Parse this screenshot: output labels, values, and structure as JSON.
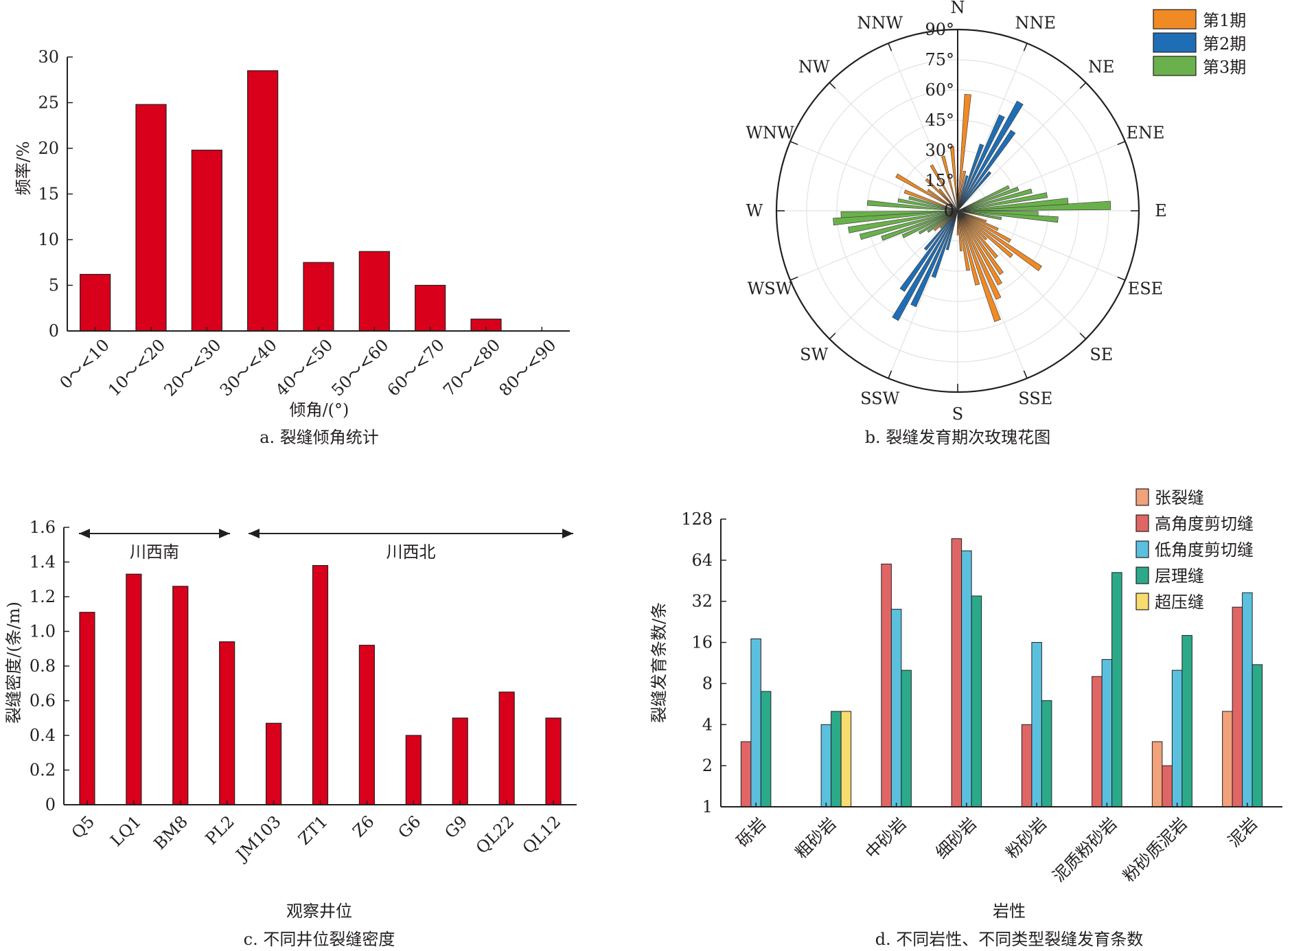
{
  "chart_data": [
    {
      "id": "a",
      "type": "bar",
      "caption": "a. 裂缝倾角统计",
      "xlabel": "倾角/(°)",
      "ylabel": "频率/%",
      "ylim": [
        0,
        30
      ],
      "yticks": [
        "0",
        "5",
        "10",
        "15",
        "20",
        "25",
        "30"
      ],
      "categories": [
        "0～<10",
        "10～<20",
        "20～<30",
        "30～<40",
        "40～<50",
        "50～<60",
        "60～<70",
        "70～<80",
        "80～<90"
      ],
      "values": [
        6.2,
        24.8,
        19.8,
        28.5,
        7.5,
        8.7,
        5.0,
        1.3,
        0
      ],
      "color": "#d9001b"
    },
    {
      "id": "b",
      "type": "rose",
      "caption": "b. 裂缝发育期次玫瑰花图",
      "directions": [
        "N",
        "NNE",
        "NE",
        "ENE",
        "E",
        "ESE",
        "SE",
        "SSE",
        "S",
        "SSW",
        "SW",
        "WSW",
        "W",
        "WNW",
        "NW",
        "NNW"
      ],
      "radial_labels": [
        "0",
        "15°",
        "30°",
        "45°",
        "60°",
        "75°",
        "90°"
      ],
      "legend": [
        "第1期",
        "第2期",
        "第3期"
      ],
      "colors": [
        "#f08a24",
        "#1f6eb5",
        "#6ab04c"
      ],
      "series": [
        {
          "name": "第1期",
          "petals": [
            [
              5,
              58
            ],
            [
              355,
              32
            ],
            [
              345,
              28
            ],
            [
              330,
              26
            ],
            [
              315,
              22
            ],
            [
              300,
              35
            ],
            [
              290,
              28
            ],
            [
              305,
              18
            ],
            [
              320,
              14
            ],
            [
              10,
              20
            ],
            [
              160,
              58
            ],
            [
              155,
              48
            ],
            [
              150,
              42
            ],
            [
              145,
              38
            ],
            [
              140,
              30
            ],
            [
              125,
              50
            ],
            [
              130,
              35
            ],
            [
              165,
              38
            ],
            [
              170,
              30
            ],
            [
              175,
              20
            ],
            [
              180,
              12
            ],
            [
              135,
              20
            ],
            [
              120,
              30
            ],
            [
              115,
              22
            ],
            [
              110,
              15
            ],
            [
              100,
              18
            ],
            [
              250,
              22
            ],
            [
              240,
              18
            ],
            [
              230,
              15
            ],
            [
              200,
              12
            ]
          ]
        },
        {
          "name": "第2期",
          "petals": [
            [
              30,
              62
            ],
            [
              25,
              52
            ],
            [
              35,
              48
            ],
            [
              20,
              35
            ],
            [
              40,
              25
            ],
            [
              210,
              62
            ],
            [
              205,
              52
            ],
            [
              215,
              48
            ],
            [
              200,
              35
            ],
            [
              220,
              25
            ],
            [
              195,
              20
            ],
            [
              15,
              18
            ]
          ]
        },
        {
          "name": "第3期",
          "petals": [
            [
              88,
              76
            ],
            [
              85,
              55
            ],
            [
              80,
              45
            ],
            [
              75,
              38
            ],
            [
              70,
              32
            ],
            [
              65,
              28
            ],
            [
              95,
              50
            ],
            [
              92,
              40
            ],
            [
              100,
              22
            ],
            [
              268,
              58
            ],
            [
              265,
              62
            ],
            [
              260,
              55
            ],
            [
              255,
              50
            ],
            [
              250,
              40
            ],
            [
              245,
              30
            ],
            [
              275,
              45
            ],
            [
              280,
              30
            ],
            [
              285,
              25
            ],
            [
              240,
              22
            ],
            [
              235,
              18
            ],
            [
              225,
              12
            ]
          ]
        }
      ]
    },
    {
      "id": "c",
      "type": "bar",
      "caption": "c. 不同井位裂缝密度",
      "xlabel": "观察井位",
      "ylabel": "裂缝密度/(条/m)",
      "ylim": [
        0,
        1.6
      ],
      "yticks": [
        "0",
        "0.2",
        "0.4",
        "0.6",
        "0.8",
        "1.0",
        "1.2",
        "1.4",
        "1.6"
      ],
      "categories": [
        "Q5",
        "LQ1",
        "BM8",
        "PL2",
        "JM103",
        "ZT1",
        "Z6",
        "G6",
        "G9",
        "QL22",
        "QL12"
      ],
      "values": [
        1.11,
        1.33,
        1.26,
        0.94,
        0.47,
        1.38,
        0.92,
        0.4,
        0.5,
        0.65,
        0.5
      ],
      "regions": [
        {
          "label": "川西南",
          "from": 0,
          "to": 3
        },
        {
          "label": "川西北",
          "from": 4,
          "to": 10
        }
      ],
      "color": "#d9001b"
    },
    {
      "id": "d",
      "type": "bar",
      "scale": "log2",
      "caption": "d. 不同岩性、不同类型裂缝发育条数",
      "xlabel": "岩性",
      "ylabel": "裂缝发育条数/条",
      "ylim": [
        1,
        128
      ],
      "yticks": [
        "1",
        "2",
        "4",
        "8",
        "16",
        "32",
        "64",
        "128"
      ],
      "categories": [
        "砾岩",
        "粗砂岩",
        "中砂岩",
        "细砂岩",
        "粉砂岩",
        "泥质粉砂岩",
        "粉砂质泥岩",
        "泥岩"
      ],
      "series": [
        {
          "name": "张裂缝",
          "color": "#f0a27a",
          "values": [
            0,
            0,
            0,
            0,
            0,
            0,
            3,
            5
          ]
        },
        {
          "name": "高角度剪切缝",
          "color": "#e06666",
          "values": [
            3,
            0,
            60,
            92,
            4,
            9,
            2,
            29
          ]
        },
        {
          "name": "低角度剪切缝",
          "color": "#5bc0de",
          "values": [
            17,
            4,
            28,
            75,
            16,
            12,
            10,
            37
          ]
        },
        {
          "name": "层理缝",
          "color": "#2baa8a",
          "values": [
            7,
            5,
            10,
            35,
            6,
            52,
            18,
            11
          ]
        },
        {
          "name": "超压缝",
          "color": "#f7dc6f",
          "values": [
            0,
            5,
            0,
            0,
            0,
            0,
            0,
            0
          ]
        }
      ]
    }
  ]
}
